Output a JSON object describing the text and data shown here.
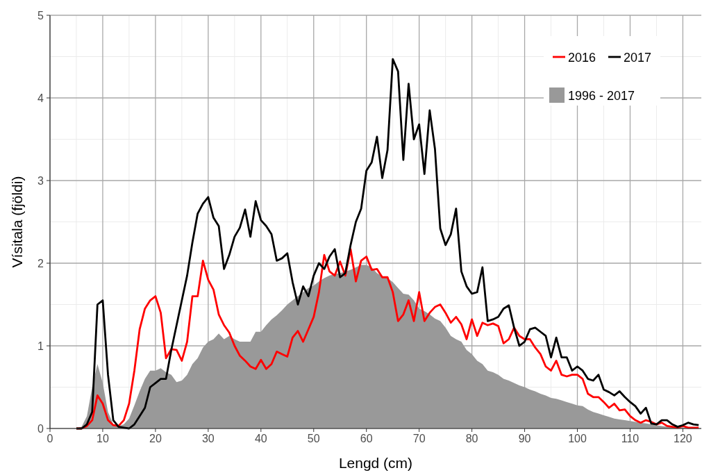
{
  "chart_data": {
    "type": "line",
    "xlabel": "Lengd (cm)",
    "ylabel": "Vísitala (fjöldi)",
    "x": [
      5,
      6,
      7,
      8,
      9,
      10,
      11,
      12,
      13,
      14,
      15,
      16,
      17,
      18,
      19,
      20,
      21,
      22,
      23,
      24,
      25,
      26,
      27,
      28,
      29,
      30,
      31,
      32,
      33,
      34,
      35,
      36,
      37,
      38,
      39,
      40,
      41,
      42,
      43,
      44,
      45,
      46,
      47,
      48,
      49,
      50,
      51,
      52,
      53,
      54,
      55,
      56,
      57,
      58,
      59,
      60,
      61,
      62,
      63,
      64,
      65,
      66,
      67,
      68,
      69,
      70,
      71,
      72,
      73,
      74,
      75,
      76,
      77,
      78,
      79,
      80,
      81,
      82,
      83,
      84,
      85,
      86,
      87,
      88,
      89,
      90,
      91,
      92,
      93,
      94,
      95,
      96,
      97,
      98,
      99,
      100,
      101,
      102,
      103,
      104,
      105,
      106,
      107,
      108,
      109,
      110,
      111,
      112,
      113,
      114,
      115,
      116,
      117,
      118,
      119,
      120,
      121,
      122,
      123
    ],
    "series": [
      {
        "name": "1996 - 2017",
        "type": "area",
        "color": "#999999",
        "values": [
          0,
          0.02,
          0.15,
          0.5,
          0.78,
          0.55,
          0.2,
          0.05,
          0.03,
          0.05,
          0.12,
          0.28,
          0.45,
          0.6,
          0.7,
          0.7,
          0.73,
          0.68,
          0.65,
          0.56,
          0.58,
          0.65,
          0.78,
          0.85,
          0.98,
          1.05,
          1.08,
          1.15,
          1.08,
          1.12,
          1.08,
          1.05,
          1.05,
          1.05,
          1.17,
          1.17,
          1.25,
          1.32,
          1.37,
          1.43,
          1.5,
          1.55,
          1.6,
          1.65,
          1.7,
          1.73,
          1.78,
          1.82,
          1.85,
          1.87,
          1.88,
          1.9,
          1.92,
          1.95,
          1.98,
          1.98,
          1.95,
          1.88,
          1.84,
          1.82,
          1.77,
          1.7,
          1.63,
          1.62,
          1.55,
          1.45,
          1.42,
          1.38,
          1.33,
          1.3,
          1.22,
          1.12,
          1.08,
          1.05,
          0.95,
          0.9,
          0.82,
          0.78,
          0.7,
          0.68,
          0.65,
          0.6,
          0.58,
          0.55,
          0.52,
          0.5,
          0.47,
          0.45,
          0.42,
          0.4,
          0.37,
          0.36,
          0.34,
          0.32,
          0.3,
          0.28,
          0.27,
          0.23,
          0.2,
          0.18,
          0.16,
          0.14,
          0.12,
          0.11,
          0.1,
          0.09,
          0.08,
          0.07,
          0.06,
          0.05,
          0.04,
          0.03,
          0.02,
          0.02,
          0.01,
          0.01,
          0,
          0,
          0
        ]
      },
      {
        "name": "2016",
        "color": "#ff0000",
        "values": [
          0,
          0,
          0.03,
          0.1,
          0.4,
          0.3,
          0.1,
          0.04,
          0.03,
          0.1,
          0.3,
          0.7,
          1.2,
          1.45,
          1.55,
          1.6,
          1.4,
          0.85,
          0.96,
          0.95,
          0.82,
          1.05,
          1.6,
          1.6,
          2.03,
          1.8,
          1.68,
          1.38,
          1.25,
          1.16,
          1.0,
          0.88,
          0.82,
          0.75,
          0.72,
          0.83,
          0.72,
          0.78,
          0.93,
          0.9,
          0.87,
          1.1,
          1.18,
          1.05,
          1.2,
          1.35,
          1.65,
          2.1,
          1.9,
          1.85,
          2.02,
          1.85,
          2.17,
          1.78,
          2.03,
          2.08,
          1.92,
          1.93,
          1.83,
          1.83,
          1.65,
          1.3,
          1.38,
          1.55,
          1.3,
          1.65,
          1.3,
          1.4,
          1.47,
          1.5,
          1.4,
          1.28,
          1.35,
          1.26,
          1.08,
          1.32,
          1.12,
          1.28,
          1.25,
          1.27,
          1.24,
          1.03,
          1.08,
          1.22,
          1.12,
          1.08,
          1.08,
          0.98,
          0.9,
          0.75,
          0.7,
          0.82,
          0.65,
          0.63,
          0.65,
          0.65,
          0.6,
          0.42,
          0.38,
          0.38,
          0.32,
          0.25,
          0.3,
          0.22,
          0.23,
          0.15,
          0.1,
          0.07,
          0.1,
          0.08,
          0.05,
          0.07,
          0.03,
          0.02,
          0.01,
          0.03,
          0.01,
          0.01,
          0.01
        ]
      },
      {
        "name": "2017",
        "color": "#000000",
        "values": [
          0,
          0,
          0.05,
          0.2,
          1.5,
          1.55,
          0.65,
          0.1,
          0.02,
          0.01,
          0,
          0.05,
          0.15,
          0.25,
          0.5,
          0.55,
          0.6,
          0.6,
          0.95,
          1.25,
          1.55,
          1.85,
          2.25,
          2.6,
          2.72,
          2.8,
          2.55,
          2.45,
          1.93,
          2.1,
          2.32,
          2.43,
          2.65,
          2.32,
          2.75,
          2.52,
          2.45,
          2.35,
          2.03,
          2.06,
          2.12,
          1.77,
          1.5,
          1.72,
          1.6,
          1.85,
          2.0,
          1.93,
          2.08,
          2.17,
          1.83,
          1.88,
          2.22,
          2.5,
          2.66,
          3.12,
          3.22,
          3.53,
          3.03,
          3.37,
          4.47,
          4.32,
          3.25,
          4.17,
          3.5,
          3.68,
          3.08,
          3.85,
          3.38,
          2.42,
          2.22,
          2.35,
          2.66,
          1.9,
          1.72,
          1.63,
          1.65,
          1.95,
          1.3,
          1.32,
          1.35,
          1.45,
          1.49,
          1.22,
          1.0,
          1.05,
          1.2,
          1.22,
          1.17,
          1.12,
          0.86,
          1.1,
          0.86,
          0.86,
          0.7,
          0.75,
          0.7,
          0.6,
          0.58,
          0.65,
          0.47,
          0.44,
          0.4,
          0.45,
          0.38,
          0.32,
          0.27,
          0.18,
          0.25,
          0.06,
          0.05,
          0.1,
          0.1,
          0.05,
          0.02,
          0.04,
          0.07,
          0.05,
          0.04
        ]
      }
    ],
    "xlim": [
      0,
      123.5
    ],
    "xticks": [
      0,
      10,
      20,
      30,
      40,
      50,
      60,
      70,
      80,
      90,
      100,
      110,
      120
    ],
    "ylim": [
      0,
      5
    ],
    "yticks": [
      0,
      1,
      2,
      3,
      4,
      5
    ],
    "grid": true,
    "legend": "top right",
    "line_style": "solid"
  }
}
